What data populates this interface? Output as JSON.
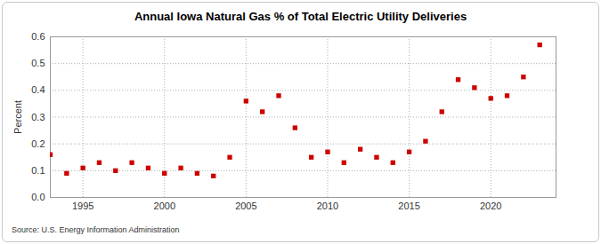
{
  "chart_data": {
    "type": "scatter",
    "title": "Annual Iowa Natural Gas % of Total Electric Utility Deliveries",
    "y_label": "Percent",
    "source": "Source: U.S. Energy Information Administration",
    "x": [
      1993,
      1994,
      1995,
      1996,
      1997,
      1998,
      1999,
      2000,
      2001,
      2002,
      2003,
      2004,
      2005,
      2006,
      2007,
      2008,
      2009,
      2010,
      2011,
      2012,
      2013,
      2014,
      2015,
      2016,
      2017,
      2018,
      2019,
      2020,
      2021,
      2022,
      2023
    ],
    "values": [
      0.16,
      0.09,
      0.11,
      0.13,
      0.1,
      0.13,
      0.11,
      0.09,
      0.11,
      0.09,
      0.08,
      0.15,
      0.36,
      0.32,
      0.38,
      0.26,
      0.15,
      0.17,
      0.13,
      0.18,
      0.15,
      0.13,
      0.17,
      0.21,
      0.32,
      0.44,
      0.41,
      0.37,
      0.38,
      0.45,
      0.57
    ],
    "color": "#cc0000",
    "marker": "square",
    "xlim": [
      1993,
      2024
    ],
    "xticks": [
      1995,
      2000,
      2005,
      2010,
      2015,
      2020
    ],
    "ylim": [
      0,
      0.6
    ],
    "yticks": [
      {
        "value": 0,
        "label": "0.0"
      },
      0.1,
      0.2,
      0.3,
      0.4,
      0.5,
      0.6
    ],
    "grid": true
  }
}
